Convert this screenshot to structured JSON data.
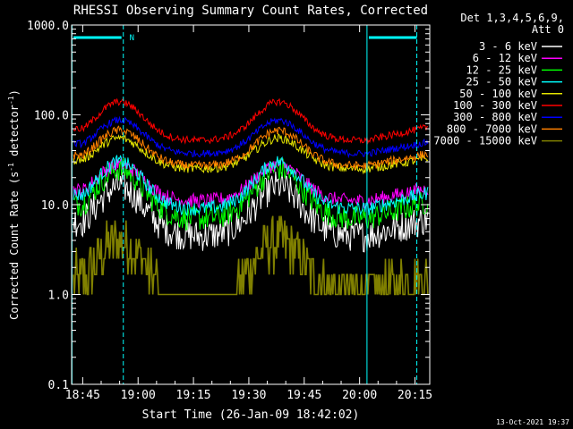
{
  "chart_data": {
    "type": "line",
    "title": "RHESSI Observing Summary Count Rates, Corrected",
    "xlabel": "Start Time (26-Jan-09 18:42:02)",
    "ylabel_main": "Corrected Count Rate (s",
    "ylabel_sup1": "-1",
    "ylabel_mid": " detector",
    "ylabel_sup2": "-1",
    "ylabel_end": ")",
    "yscale": "log",
    "ylim": [
      0.1,
      1000
    ],
    "xlim_minutes": [
      0,
      97
    ],
    "x_ticks": [
      {
        "label": "18:45",
        "minutes": 3
      },
      {
        "label": "19:00",
        "minutes": 18
      },
      {
        "label": "19:15",
        "minutes": 33
      },
      {
        "label": "19:30",
        "minutes": 48
      },
      {
        "label": "19:45",
        "minutes": 63
      },
      {
        "label": "20:00",
        "minutes": 78
      },
      {
        "label": "20:15",
        "minutes": 93
      }
    ],
    "y_ticks": [
      {
        "label": "0.1",
        "value": 0.1
      },
      {
        "label": "1.0",
        "value": 1
      },
      {
        "label": "10.0",
        "value": 10
      },
      {
        "label": "100.0",
        "value": 100
      },
      {
        "label": "1000.0",
        "value": 1000
      }
    ],
    "legend_header": [
      "Det 1,3,4,5,6,9,",
      "Att 0"
    ],
    "legend_position": "right",
    "timestamp": "13-Oct-2021 19:37",
    "flag_label": "N",
    "series": [
      {
        "name": "3 - 6 keV",
        "color": "#ffffff",
        "low": 4.5,
        "peak": 16,
        "noise": 0.18
      },
      {
        "name": "6 - 12 keV",
        "color": "#ff00ff",
        "low": 11,
        "peak": 28,
        "noise": 0.08
      },
      {
        "name": "12 - 25 keV",
        "color": "#00ff00",
        "low": 7,
        "peak": 25,
        "noise": 0.14
      },
      {
        "name": "25 - 50 keV",
        "color": "#00ffff",
        "low": 9,
        "peak": 30,
        "noise": 0.08
      },
      {
        "name": "50 - 100 keV",
        "color": "#e6e600",
        "low": 25,
        "peak": 55,
        "noise": 0.05
      },
      {
        "name": "100 - 300 keV",
        "color": "#ff0000",
        "low": 52,
        "peak": 140,
        "noise": 0.04
      },
      {
        "name": "300 - 800 keV",
        "color": "#0000ff",
        "low": 37,
        "peak": 87,
        "noise": 0.04
      },
      {
        "name": "800 - 7000 keV",
        "color": "#ff8000",
        "low": 27,
        "peak": 67,
        "noise": 0.05
      },
      {
        "name": "7000 - 15000 keV",
        "color": "#808000",
        "low": 1,
        "peak": 4,
        "noise": 0.3
      }
    ],
    "peak_minutes": [
      13,
      56
    ],
    "vertical_lines": [
      {
        "minutes": 0.1,
        "style": "solid"
      },
      {
        "minutes": 14,
        "style": "dashed"
      },
      {
        "minutes": 80,
        "style": "solid"
      },
      {
        "minutes": 93.5,
        "style": "dashed"
      }
    ],
    "flag_segments": [
      [
        0.5,
        13.5
      ],
      [
        80.5,
        93.5
      ]
    ]
  }
}
